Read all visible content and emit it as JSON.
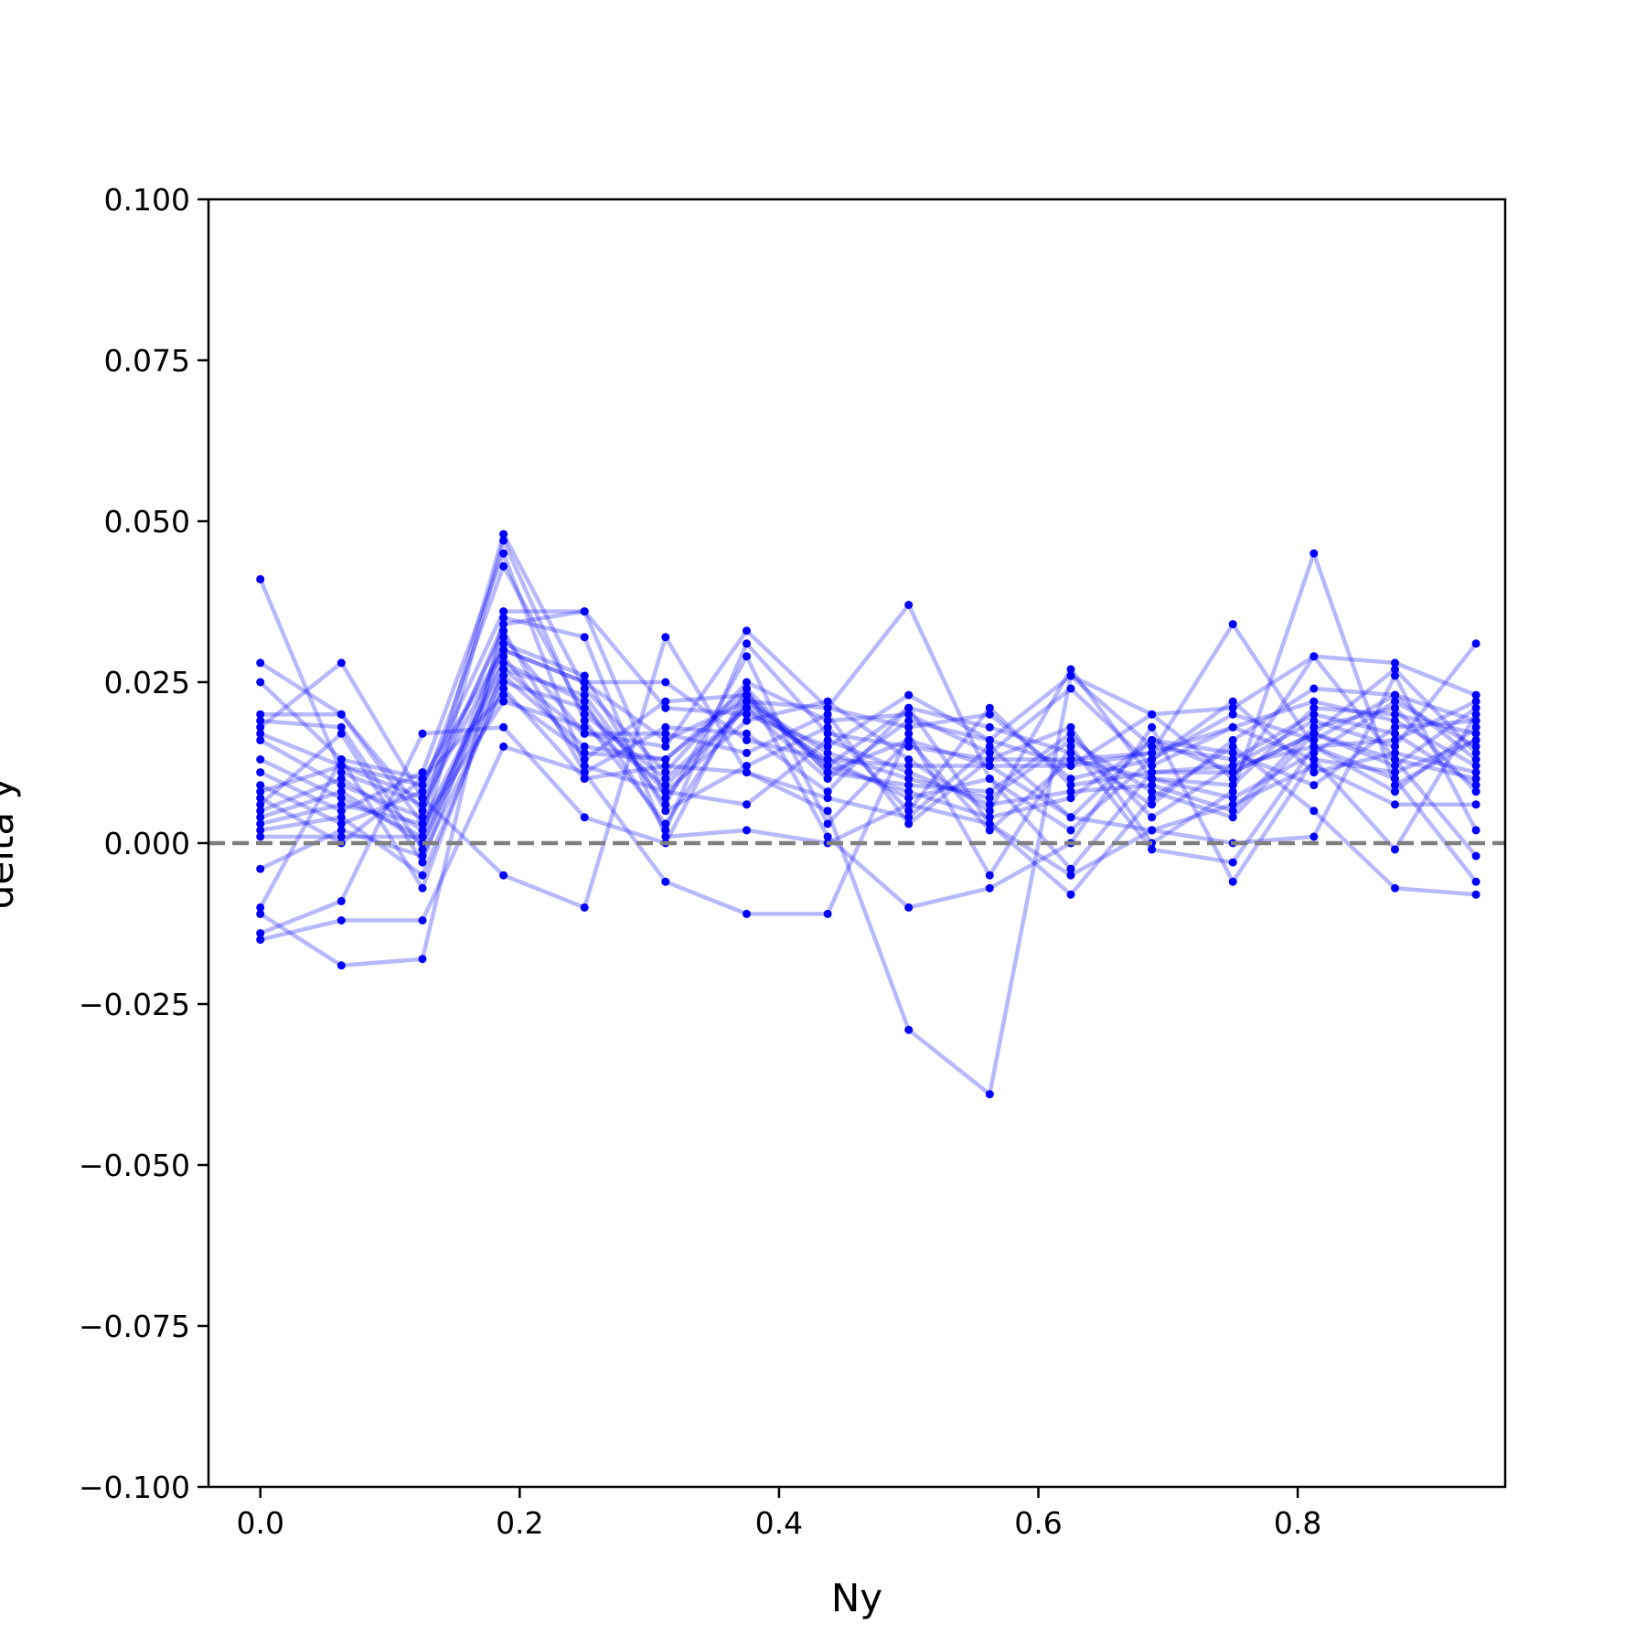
{
  "chart_data": {
    "type": "line",
    "title": "",
    "xlabel": "Ny",
    "ylabel": "delta y",
    "xlim": [
      -0.04,
      0.96
    ],
    "ylim": [
      -0.1,
      0.1
    ],
    "xticks": [
      0.0,
      0.2,
      0.4,
      0.6,
      0.8
    ],
    "xtick_labels": [
      "0.0",
      "0.2",
      "0.4",
      "0.6",
      "0.8"
    ],
    "yticks": [
      0.1,
      0.075,
      0.05,
      0.025,
      0.0,
      -0.025,
      -0.05,
      -0.075,
      -0.1
    ],
    "ytick_labels": [
      "0.100",
      "0.075",
      "0.050",
      "0.025",
      "0.000",
      "−0.025",
      "−0.050",
      "−0.075",
      "−0.100"
    ],
    "grid": false,
    "reference_line": {
      "y": 0.0,
      "style": "dashed",
      "color": "#808080"
    },
    "series_color": "#0000ff",
    "series_alpha": 0.28,
    "x": [
      0.0,
      0.0625,
      0.125,
      0.1875,
      0.25,
      0.3125,
      0.375,
      0.4375,
      0.5,
      0.5625,
      0.625,
      0.6875,
      0.75,
      0.8125,
      0.875,
      0.9375
    ],
    "series": [
      {
        "values": [
          0.041,
          0.011,
          0.006,
          0.03,
          0.025,
          0.025,
          0.016,
          0.013,
          0.012,
          0.012,
          0.004,
          0.016,
          0.011,
          0.017,
          0.013,
          0.01
        ]
      },
      {
        "values": [
          0.028,
          0.02,
          0.005,
          0.034,
          0.036,
          0.007,
          0.022,
          0.021,
          0.018,
          0.02,
          0.01,
          0.013,
          0.02,
          0.016,
          0.023,
          0.019
        ]
      },
      {
        "values": [
          0.025,
          0.013,
          0.01,
          0.023,
          0.014,
          0.013,
          0.024,
          0.011,
          0.016,
          0.002,
          0.013,
          0.014,
          0.034,
          0.015,
          0.008,
          0.018
        ]
      },
      {
        "values": [
          0.02,
          0.02,
          0.003,
          0.028,
          0.022,
          0.002,
          0.031,
          0.017,
          0.015,
          0.013,
          0.018,
          0.0,
          0.008,
          0.045,
          0.009,
          0.016
        ]
      },
      {
        "values": [
          0.019,
          0.018,
          -0.001,
          0.032,
          0.017,
          0.015,
          0.033,
          0.021,
          0.037,
          0.01,
          -0.004,
          0.011,
          0.012,
          0.019,
          0.015,
          0.031
        ]
      },
      {
        "values": [
          0.017,
          0.012,
          0.009,
          0.036,
          0.036,
          0.021,
          0.02,
          0.015,
          0.023,
          0.016,
          0.012,
          0.02,
          0.01,
          0.029,
          0.028,
          0.023
        ]
      },
      {
        "values": [
          0.016,
          0.009,
          0.004,
          0.048,
          0.024,
          0.011,
          0.025,
          0.019,
          0.02,
          0.014,
          0.024,
          0.012,
          0.018,
          0.022,
          0.019,
          0.012
        ]
      },
      {
        "values": [
          0.013,
          0.007,
          0.001,
          0.047,
          0.019,
          0.003,
          0.022,
          0.014,
          0.01,
          0.007,
          0.016,
          0.008,
          0.004,
          0.017,
          0.012,
          0.021
        ]
      },
      {
        "values": [
          0.011,
          0.005,
          0.011,
          0.045,
          0.012,
          0.008,
          0.019,
          0.022,
          0.013,
          0.005,
          0.027,
          0.01,
          0.007,
          0.014,
          0.022,
          0.015
        ]
      },
      {
        "values": [
          0.009,
          0.003,
          0.008,
          0.043,
          0.02,
          0.01,
          0.021,
          0.01,
          0.019,
          0.016,
          0.026,
          0.015,
          0.013,
          0.02,
          0.017,
          0.009
        ]
      },
      {
        "values": [
          0.008,
          0.012,
          0.007,
          0.033,
          0.011,
          0.018,
          0.017,
          0.008,
          0.021,
          0.018,
          0.014,
          0.006,
          0.016,
          0.024,
          0.023,
          0.013
        ]
      },
      {
        "values": [
          0.006,
          0.017,
          -0.003,
          0.031,
          0.026,
          0.005,
          0.012,
          0.018,
          0.005,
          0.021,
          0.009,
          0.011,
          0.011,
          0.017,
          0.027,
          0.014
        ]
      },
      {
        "values": [
          0.005,
          0.01,
          0.002,
          0.027,
          0.023,
          0.006,
          0.029,
          0.003,
          0.016,
          0.012,
          0.012,
          0.014,
          0.018,
          0.013,
          0.011,
          0.016
        ]
      },
      {
        "values": [
          0.004,
          0.008,
          0.0,
          0.026,
          0.015,
          0.013,
          0.023,
          0.011,
          0.009,
          0.008,
          0.017,
          0.004,
          0.012,
          0.015,
          0.016,
          0.022
        ]
      },
      {
        "values": [
          0.003,
          0.006,
          0.003,
          0.022,
          0.018,
          0.009,
          0.021,
          0.013,
          0.007,
          0.01,
          0.002,
          0.013,
          0.022,
          0.011,
          0.014,
          0.011
        ]
      },
      {
        "values": [
          0.002,
          0.004,
          -0.005,
          0.025,
          0.021,
          0.008,
          0.006,
          0.016,
          0.011,
          0.006,
          0.008,
          0.009,
          0.005,
          0.018,
          0.021,
          0.008
        ]
      },
      {
        "values": [
          0.001,
          0.001,
          0.001,
          0.029,
          0.013,
          0.022,
          0.023,
          0.012,
          0.008,
          0.004,
          0.007,
          0.016,
          0.014,
          0.009,
          0.018,
          0.019
        ]
      },
      {
        "values": [
          -0.004,
          0.002,
          -0.002,
          0.024,
          0.01,
          0.012,
          0.011,
          0.007,
          0.004,
          0.015,
          0.004,
          0.002,
          0.006,
          0.012,
          0.006,
          0.006
        ]
      },
      {
        "values": [
          -0.01,
          0.013,
          -0.007,
          0.027,
          0.017,
          0.017,
          0.014,
          0.02,
          0.003,
          0.013,
          0.013,
          0.01,
          0.009,
          0.021,
          0.02,
          0.017
        ]
      },
      {
        "values": [
          -0.014,
          -0.009,
          0.017,
          0.018,
          0.004,
          0.0,
          0.024,
          0.001,
          -0.01,
          -0.007,
          0.0,
          0.018,
          -0.006,
          0.013,
          -0.001,
          0.02
        ]
      },
      {
        "values": [
          -0.015,
          -0.012,
          -0.012,
          0.015,
          0.011,
          -0.006,
          -0.011,
          -0.011,
          0.017,
          -0.005,
          0.015,
          -0.001,
          -0.003,
          0.015,
          0.01,
          -0.006
        ]
      },
      {
        "values": [
          -0.011,
          -0.019,
          -0.018,
          0.035,
          0.032,
          0.001,
          0.002,
          0.0,
          0.006,
          0.003,
          -0.008,
          0.007,
          0.015,
          0.005,
          -0.007,
          -0.008
        ]
      },
      {
        "values": [
          0.018,
          0.028,
          0.007,
          -0.005,
          -0.01,
          0.032,
          0.011,
          0.005,
          -0.029,
          -0.039,
          0.026,
          0.02,
          0.021,
          0.029,
          0.013,
          -0.002
        ]
      },
      {
        "values": [
          0.007,
          0.0,
          0.01,
          0.03,
          0.025,
          0.016,
          0.022,
          0.012,
          0.021,
          0.003,
          -0.005,
          0.002,
          0.0,
          0.001,
          0.026,
          0.002
        ]
      }
    ]
  }
}
